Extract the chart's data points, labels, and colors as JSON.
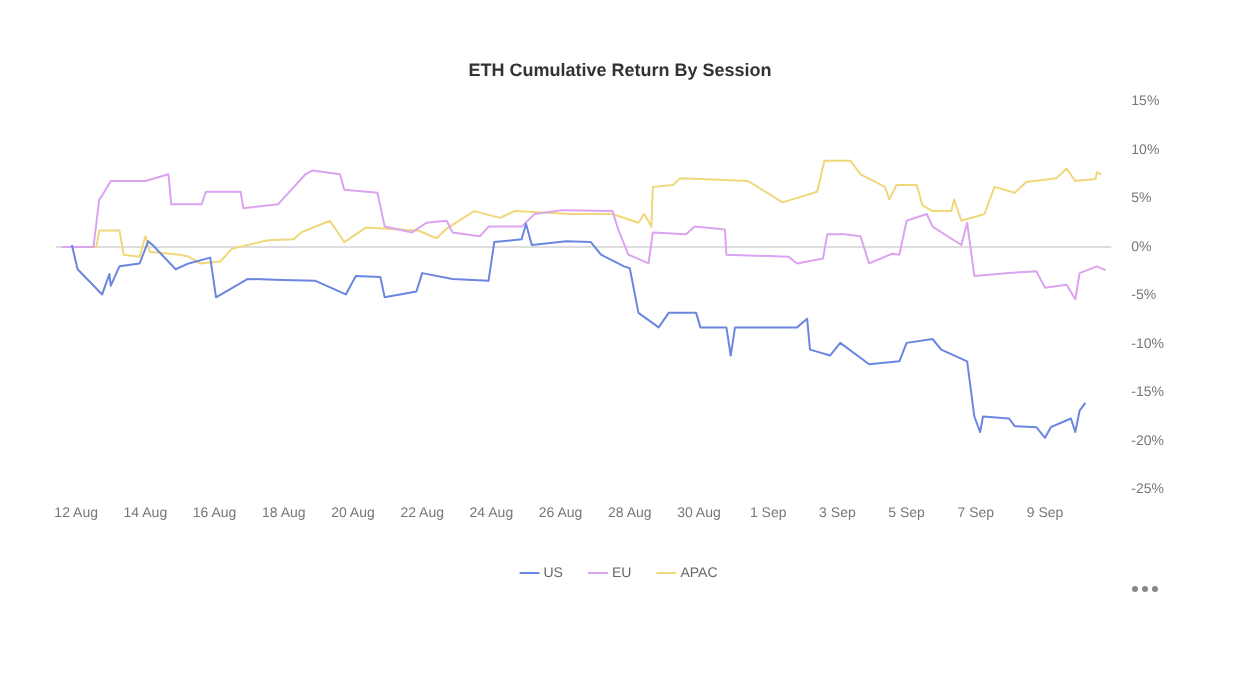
{
  "chart_data": {
    "type": "line",
    "title": "ETH Cumulative Return By Session",
    "xlim": [
      "--08-11T10:00",
      "--09-10T22:00"
    ],
    "xticks": [
      {
        "value": "--08-12",
        "label": "12 Aug"
      },
      {
        "value": "--08-14",
        "label": "14 Aug"
      },
      {
        "value": "--08-16",
        "label": "16 Aug"
      },
      {
        "value": "--08-18",
        "label": "18 Aug"
      },
      {
        "value": "--08-20",
        "label": "20 Aug"
      },
      {
        "value": "--08-22",
        "label": "22 Aug"
      },
      {
        "value": "--08-24",
        "label": "24 Aug"
      },
      {
        "value": "--08-26",
        "label": "26 Aug"
      },
      {
        "value": "--08-28",
        "label": "28 Aug"
      },
      {
        "value": "--08-30",
        "label": "30 Aug"
      },
      {
        "value": "--09-01",
        "label": "1 Sep"
      },
      {
        "value": "--09-03",
        "label": "3 Sep"
      },
      {
        "value": "--09-05",
        "label": "5 Sep"
      },
      {
        "value": "--09-07",
        "label": "7 Sep"
      },
      {
        "value": "--09-09",
        "label": "9 Sep"
      }
    ],
    "ylim": [
      -25,
      15
    ],
    "yticks": [
      {
        "value": -25,
        "label": "-25%"
      },
      {
        "value": -20,
        "label": "-20%"
      },
      {
        "value": -15,
        "label": "-15%"
      },
      {
        "value": -10,
        "label": "-10%"
      },
      {
        "value": -5,
        "label": "-5%"
      },
      {
        "value": 0,
        "label": "0%"
      },
      {
        "value": 5,
        "label": "5%"
      },
      {
        "value": 10,
        "label": "10%"
      },
      {
        "value": 15,
        "label": "15%"
      }
    ],
    "grid": false,
    "legend": "bottom",
    "marker": "none",
    "line_style": "solid",
    "ref_lines": [
      {
        "axis": "y",
        "value": 0,
        "color": "#dddddd"
      }
    ],
    "series": [
      {
        "name": "US",
        "color": "#6a86e0",
        "x": [
          "--08-11T21:00",
          "--08-12T01:00",
          "--08-12T18:00",
          "--08-12T23:00",
          "--08-13T00:00",
          "--08-13T06:00",
          "--08-13T20:00",
          "--08-14T02:00",
          "--08-14T05:00",
          "--08-14T21:00",
          "--08-15T06:00",
          "--08-15T21:00",
          "--08-16T01:00",
          "--08-16T23:00",
          "--08-17T23:00",
          "--08-18T22:00",
          "--08-19T19:00",
          "--08-20T02:00",
          "--08-20T19:00",
          "--08-20T22:00",
          "--08-21T20:00",
          "--08-22T00:00",
          "--08-22T21:00",
          "--08-23T22:00",
          "--08-24T02:00",
          "--08-24T21:00",
          "--08-25T00:00",
          "--08-25T04:00",
          "--08-26T04:00",
          "--08-26T21:00",
          "--08-27T04:00",
          "--08-27T20:00",
          "--08-28T00:00",
          "--08-28T06:00",
          "--08-28T20:00",
          "--08-29T03:00",
          "--08-29T22:00",
          "--08-30T01:00",
          "--08-30T19:00",
          "--08-30T22:00",
          "--08-31T01:00",
          "--09-01T20:00",
          "--09-02T03:00",
          "--09-02T05:00",
          "--09-02T19:00",
          "--09-03T02:00",
          "--09-03T22:00",
          "--09-04T19:00",
          "--09-05T00:00",
          "--09-05T18:00",
          "--09-06T00:00",
          "--09-06T18:00",
          "--09-06T23:00",
          "--09-07T03:00",
          "--09-07T05:00",
          "--09-07T23:00",
          "--09-08T03:00",
          "--09-08T18:00",
          "--09-09T00:00",
          "--09-09T04:00",
          "--09-09T18:00",
          "--09-09T21:00",
          "--09-10T00:00",
          "--09-10T04:00"
        ],
        "values": [
          0.2,
          -2.3,
          -4.9,
          -2.8,
          -4.0,
          -2.0,
          -1.7,
          0.6,
          0.2,
          -2.3,
          -1.7,
          -1.1,
          -5.2,
          -3.3,
          -3.4,
          -3.5,
          -4.9,
          -3.0,
          -3.1,
          -5.2,
          -4.6,
          -2.7,
          -3.3,
          -3.5,
          0.5,
          0.8,
          2.4,
          0.2,
          0.6,
          0.5,
          -0.8,
          -2.0,
          -2.2,
          -6.8,
          -8.3,
          -6.8,
          -6.8,
          -8.3,
          -8.3,
          -11.2,
          -8.3,
          -8.3,
          -7.4,
          -10.6,
          -11.2,
          -9.9,
          -12.1,
          -11.8,
          -9.9,
          -9.5,
          -10.6,
          -11.8,
          -17.5,
          -19.1,
          -17.5,
          -17.7,
          -18.5,
          -18.6,
          -19.7,
          -18.6,
          -17.7,
          -19.1,
          -16.9,
          -16.1
        ]
      },
      {
        "name": "EU",
        "color": "#dba3f0",
        "x": [
          "--08-11T14:00",
          "--08-12T12:00",
          "--08-12T16:00",
          "--08-12T18:00",
          "--08-13T00:00",
          "--08-13T19:00",
          "--08-14T00:00",
          "--08-14T16:00",
          "--08-14T18:00",
          "--08-15T15:00",
          "--08-15T18:00",
          "--08-16T18:00",
          "--08-16T20:00",
          "--08-17T20:00",
          "--08-18T15:00",
          "--08-18T20:00",
          "--08-19T15:00",
          "--08-19T18:00",
          "--08-20T17:00",
          "--08-20T22:00",
          "--08-21T17:00",
          "--08-22T03:00",
          "--08-22T17:00",
          "--08-22T21:00",
          "--08-23T16:00",
          "--08-23T22:00",
          "--08-24T21:00",
          "--08-25T06:00",
          "--08-26T01:00",
          "--08-27T12:00",
          "--08-27T16:00",
          "--08-27T23:00",
          "--08-28T13:00",
          "--08-28T16:00",
          "--08-29T15:00",
          "--08-29T21:00",
          "--08-30T18:00",
          "--08-30T19:00",
          "--09-01T14:00",
          "--09-01T20:00",
          "--09-02T14:00",
          "--09-02T17:00",
          "--09-03T05:00",
          "--09-03T16:00",
          "--09-03T22:00",
          "--09-04T14:00",
          "--09-04T19:00",
          "--09-05T00:00",
          "--09-05T14:00",
          "--09-05T18:00",
          "--09-06T14:00",
          "--09-06T18:00",
          "--09-06T23:00",
          "--09-07T23:00",
          "--09-08T18:00",
          "--09-09T00:00",
          "--09-09T15:00",
          "--09-09T21:00",
          "--09-10T00:00",
          "--09-10T12:00",
          "--09-10T18:00"
        ],
        "values": [
          0,
          0,
          4.9,
          5.3,
          6.8,
          6.8,
          6.8,
          7.5,
          4.4,
          4.4,
          5.7,
          5.7,
          4.0,
          4.4,
          7.5,
          7.9,
          7.5,
          5.9,
          5.6,
          2.1,
          1.5,
          2.5,
          2.7,
          1.5,
          1.1,
          2.1,
          2.1,
          3.4,
          3.8,
          3.7,
          1.8,
          -0.8,
          -1.7,
          1.5,
          1.3,
          2.1,
          1.8,
          -0.8,
          -1.0,
          -1.7,
          -1.2,
          1.3,
          1.3,
          1.1,
          -1.7,
          -0.7,
          -0.8,
          2.7,
          3.4,
          2.1,
          0.2,
          2.5,
          -3.0,
          -2.7,
          -2.5,
          -4.2,
          -3.9,
          -5.4,
          -2.7,
          -2.0,
          -2.4
        ]
      },
      {
        "name": "APAC",
        "color": "#f0d77a",
        "x": [
          "--08-11T14:00",
          "--08-12T14:00",
          "--08-12T16:00",
          "--08-13T06:00",
          "--08-13T09:00",
          "--08-13T20:00",
          "--08-14T00:00",
          "--08-14T03:00",
          "--08-15T00:00",
          "--08-15T06:00",
          "--08-15T14:00",
          "--08-16T04:00",
          "--08-16T12:00",
          "--08-17T13:00",
          "--08-18T07:00",
          "--08-18T12:00",
          "--08-19T08:00",
          "--08-19T18:00",
          "--08-20T09:00",
          "--08-21T21:00",
          "--08-22T10:00",
          "--08-22T17:00",
          "--08-23T12:00",
          "--08-24T06:00",
          "--08-24T16:00",
          "--08-26T07:00",
          "--08-27T12:00",
          "--08-28T06:00",
          "--08-28T10:00",
          "--08-28T15:00",
          "--08-28T16:00",
          "--08-29T06:00",
          "--08-29T11:00",
          "--08-31T10:00",
          "--09-01T10:00",
          "--09-02T10:00",
          "--09-02T15:00",
          "--09-03T09:00",
          "--09-03T16:00",
          "--09-04T09:00",
          "--09-04T12:00",
          "--09-04T17:00",
          "--09-05T07:00",
          "--09-05T11:00",
          "--09-05T18:00",
          "--09-06T07:00",
          "--09-06T09:00",
          "--09-06T14:00",
          "--09-07T06:00",
          "--09-07T13:00",
          "--09-08T03:00",
          "--09-08T11:00",
          "--09-09T08:00",
          "--09-09T15:00",
          "--09-09T21:00",
          "--09-10T11:00",
          "--09-10T12:00",
          "--09-10T15:00"
        ],
        "values": [
          0,
          0,
          1.7,
          1.7,
          -0.8,
          -1.0,
          1.1,
          -0.5,
          -0.8,
          -1.0,
          -1.7,
          -1.5,
          -0.2,
          0.7,
          0.8,
          1.5,
          2.7,
          0.5,
          2.0,
          1.7,
          0.9,
          1.9,
          3.7,
          3.0,
          3.7,
          3.4,
          3.4,
          2.5,
          3.4,
          2.1,
          6.2,
          6.4,
          7.1,
          6.8,
          4.6,
          5.7,
          8.9,
          8.9,
          7.5,
          6.2,
          4.9,
          6.4,
          6.4,
          4.3,
          3.7,
          3.7,
          4.9,
          2.7,
          3.4,
          6.2,
          5.6,
          6.7,
          7.1,
          8.1,
          6.8,
          7.0,
          7.7,
          7.5
        ]
      }
    ]
  }
}
